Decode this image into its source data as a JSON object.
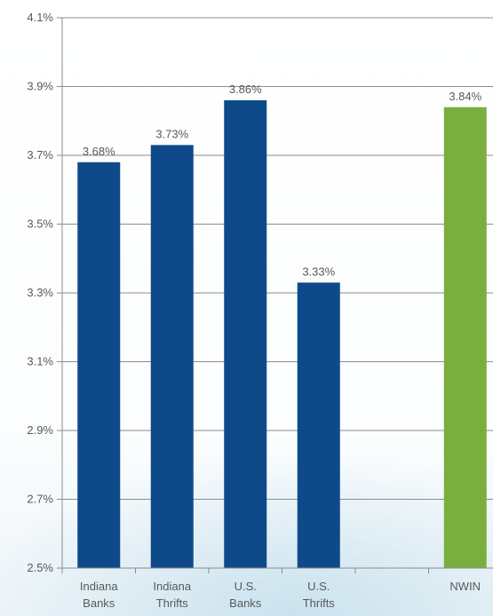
{
  "chart_data": {
    "type": "bar",
    "categories": [
      [
        "Indiana",
        "Banks"
      ],
      [
        "Indiana",
        "Thrifts"
      ],
      [
        "U.S.",
        "Banks"
      ],
      [
        "U.S.",
        "Thrifts"
      ],
      [
        "",
        ""
      ],
      [
        "NWIN",
        ""
      ]
    ],
    "values": [
      3.68,
      3.73,
      3.86,
      3.33,
      null,
      3.84
    ],
    "data_labels": [
      "3.68%",
      "3.73%",
      "3.86%",
      "3.33%",
      "",
      "3.84%"
    ],
    "bar_colors": [
      "#0e4a8a",
      "#0e4a8a",
      "#0e4a8a",
      "#0e4a8a",
      "",
      "#7aae3e"
    ],
    "ylim": [
      2.5,
      4.1
    ],
    "yticks": [
      2.5,
      2.7,
      2.9,
      3.1,
      3.3,
      3.5,
      3.7,
      3.9,
      4.1
    ],
    "ytick_labels": [
      "2.5%",
      "2.7%",
      "2.9%",
      "3.1%",
      "3.3%",
      "3.5%",
      "3.7%",
      "3.9%",
      "4.1%"
    ],
    "grid": true,
    "title": "",
    "xlabel": "",
    "ylabel": ""
  }
}
